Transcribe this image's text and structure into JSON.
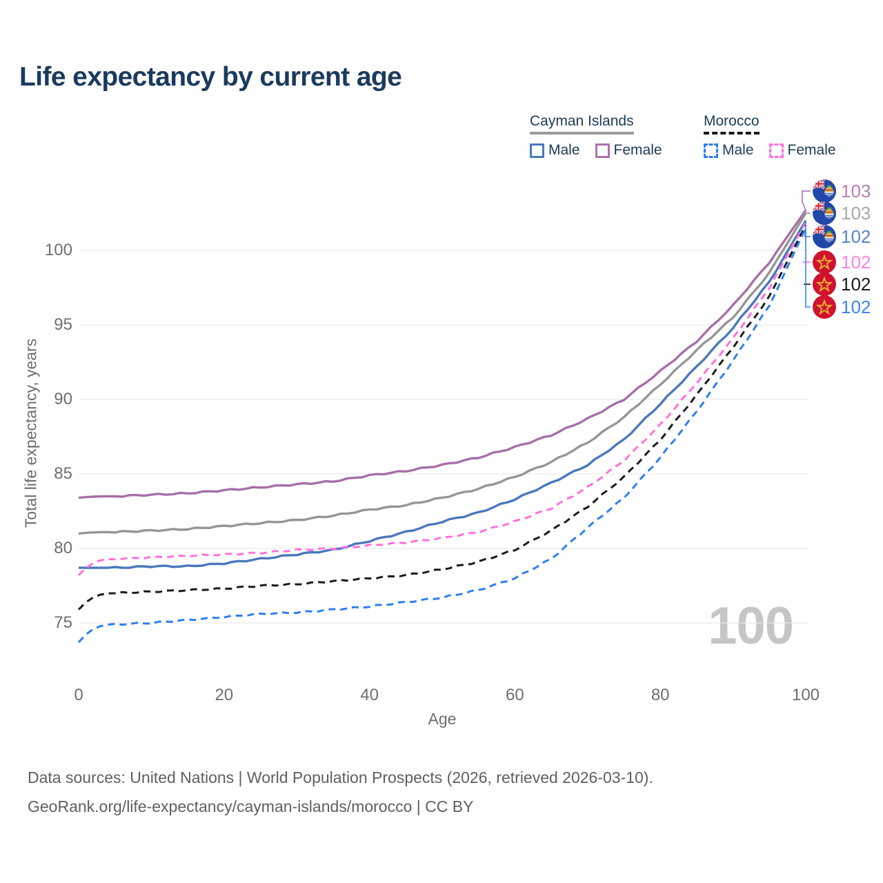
{
  "title": "Life expectancy by current age",
  "watermark": "100",
  "legend": {
    "groups": [
      {
        "name": "Cayman Islands",
        "line_style": "solid",
        "items": [
          {
            "label": "Male",
            "color": "#4a78bb",
            "dash": false
          },
          {
            "label": "Female",
            "color": "#b06fae",
            "dash": false
          }
        ]
      },
      {
        "name": "Morocco",
        "line_style": "dashed",
        "items": [
          {
            "label": "Male",
            "color": "#2e7ef0",
            "dash": true
          },
          {
            "label": "Female",
            "color": "#ff70dd",
            "dash": true
          }
        ]
      }
    ]
  },
  "chart_data": {
    "type": "line",
    "title": "Life expectancy by current age",
    "xlabel": "Age",
    "ylabel": "Total life expectancy, years",
    "x_ticks": [
      0,
      20,
      40,
      60,
      80,
      100
    ],
    "y_ticks": [
      75,
      80,
      85,
      90,
      95,
      100
    ],
    "xlim": [
      0,
      100
    ],
    "ylim": [
      73,
      104
    ],
    "grid": "horizontal",
    "legend_position": "top-right",
    "x": [
      0,
      5,
      10,
      15,
      20,
      25,
      30,
      35,
      40,
      45,
      50,
      55,
      60,
      65,
      70,
      75,
      80,
      85,
      90,
      95,
      100
    ],
    "series": [
      {
        "name": "Cayman Islands Female",
        "country": "Cayman Islands",
        "sex": "Female",
        "line_color": "#a76fa8",
        "dash": false,
        "flag": "cayman",
        "end_label": "103",
        "label_color": "#b77fb3",
        "values": [
          83.4,
          83.5,
          83.6,
          83.7,
          83.9,
          84.1,
          84.3,
          84.5,
          84.9,
          85.2,
          85.6,
          86.1,
          86.8,
          87.6,
          88.7,
          90.0,
          91.9,
          93.9,
          96.3,
          99.2,
          102.7
        ]
      },
      {
        "name": "Cayman Islands Both sexes",
        "country": "Cayman Islands",
        "sex": "Both sexes",
        "line_color": "#969696",
        "dash": false,
        "flag": "cayman",
        "end_label": "103",
        "label_color": "#a8a8a8",
        "values": [
          81.0,
          81.1,
          81.2,
          81.3,
          81.5,
          81.7,
          81.9,
          82.2,
          82.6,
          82.9,
          83.4,
          84.0,
          84.8,
          85.8,
          87.1,
          88.8,
          91.0,
          93.3,
          95.5,
          98.5,
          102.5
        ]
      },
      {
        "name": "Cayman Islands Male",
        "country": "Cayman Islands",
        "sex": "Male",
        "line_color": "#4a78bb",
        "dash": false,
        "flag": "cayman",
        "end_label": "102",
        "label_color": "#5b84c8",
        "values": [
          78.7,
          78.7,
          78.8,
          78.8,
          79.0,
          79.3,
          79.6,
          79.9,
          80.5,
          81.1,
          81.8,
          82.4,
          83.3,
          84.4,
          85.6,
          87.3,
          89.7,
          92.2,
          94.8,
          97.9,
          102.0
        ]
      },
      {
        "name": "Morocco Female",
        "country": "Morocco",
        "sex": "Female",
        "line_color": "#ff70dd",
        "dash": true,
        "flag": "morocco",
        "end_label": "102",
        "label_color": "#fb85e0",
        "values": [
          78.2,
          79.3,
          79.4,
          79.5,
          79.6,
          79.7,
          79.9,
          80.0,
          80.2,
          80.4,
          80.7,
          81.1,
          81.8,
          82.7,
          84.1,
          85.9,
          88.3,
          91.1,
          94.1,
          97.5,
          101.9
        ]
      },
      {
        "name": "Morocco Both sexes",
        "country": "Morocco",
        "sex": "Both sexes",
        "line_color": "#1a1a1a",
        "dash": true,
        "flag": "morocco",
        "end_label": "102",
        "label_color": "#1a1a1a",
        "values": [
          75.9,
          77.0,
          77.1,
          77.2,
          77.3,
          77.5,
          77.6,
          77.8,
          78.0,
          78.2,
          78.6,
          79.1,
          79.9,
          81.2,
          82.8,
          84.8,
          87.3,
          90.3,
          93.5,
          96.9,
          101.7
        ]
      },
      {
        "name": "Morocco Male",
        "country": "Morocco",
        "sex": "Male",
        "line_color": "#2e7ef0",
        "dash": true,
        "flag": "morocco",
        "end_label": "102",
        "label_color": "#4283ec",
        "values": [
          73.7,
          74.9,
          75.0,
          75.2,
          75.4,
          75.6,
          75.7,
          75.9,
          76.1,
          76.4,
          76.7,
          77.2,
          78.0,
          79.3,
          81.4,
          83.4,
          86.1,
          89.2,
          92.6,
          96.3,
          101.5
        ]
      }
    ]
  },
  "footer": {
    "line1": "Data sources: United Nations | World Population Prospects (2026, retrieved 2026-03-10).",
    "line2": "GeoRank.org/life-expectancy/cayman-islands/morocco | CC BY"
  }
}
